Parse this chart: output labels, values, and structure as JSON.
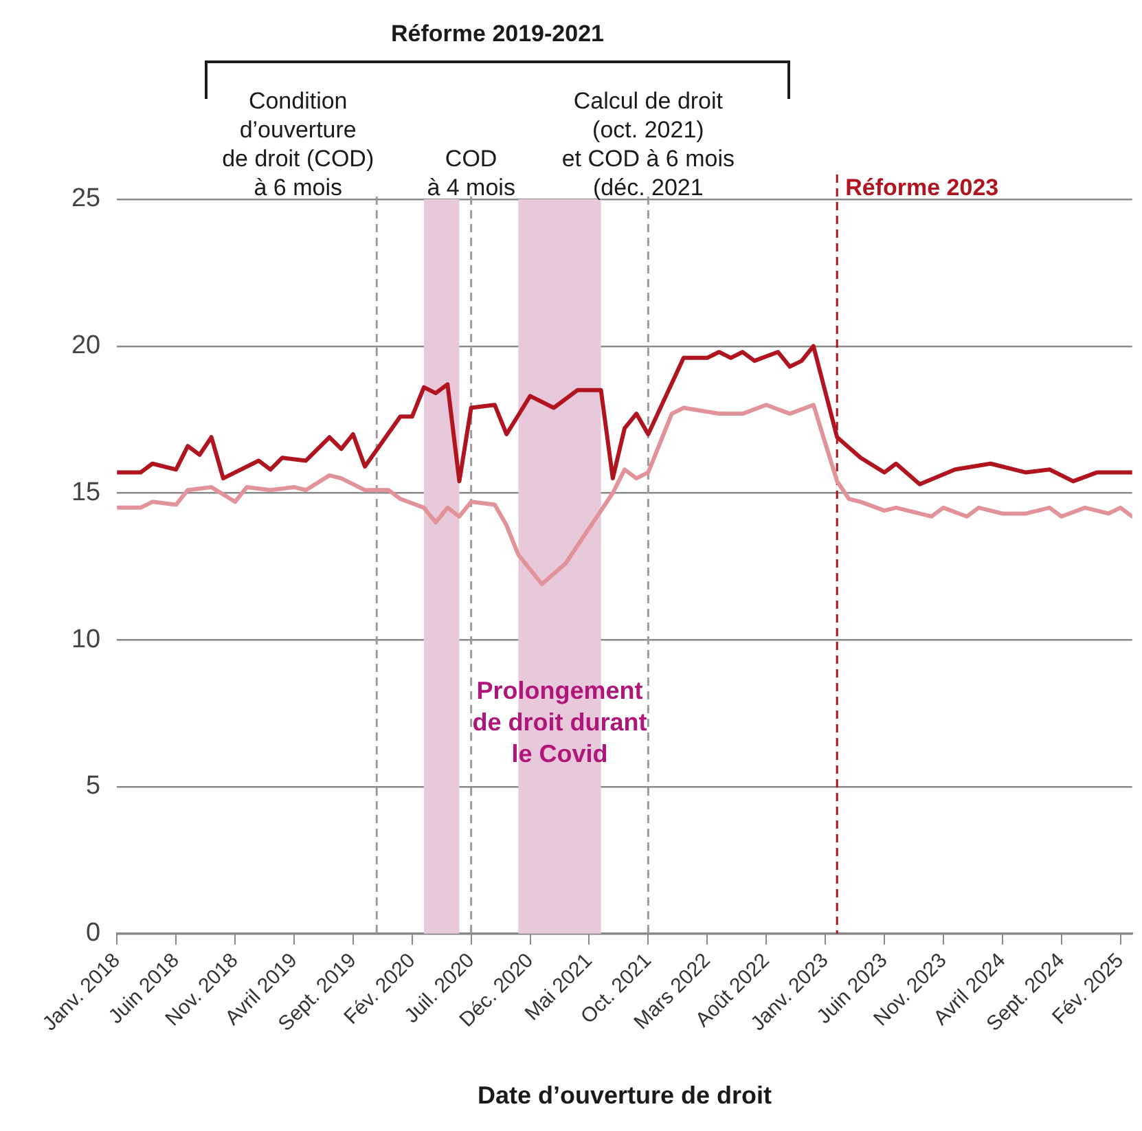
{
  "chart_data": {
    "type": "line",
    "xlabel": "Date d’ouverture de droit",
    "xlim": [
      "2018-01",
      "2025-03"
    ],
    "xticks": [
      {
        "value": "2018-01",
        "label": "Janv. 2018"
      },
      {
        "value": "2018-06",
        "label": "Juin 2018"
      },
      {
        "value": "2018-11",
        "label": "Nov. 2018"
      },
      {
        "value": "2019-04",
        "label": "Avril 2019"
      },
      {
        "value": "2019-09",
        "label": "Sept. 2019"
      },
      {
        "value": "2020-02",
        "label": "Fév. 2020"
      },
      {
        "value": "2020-07",
        "label": "Juil. 2020"
      },
      {
        "value": "2020-12",
        "label": "Déc. 2020"
      },
      {
        "value": "2021-05",
        "label": "Mai 2021"
      },
      {
        "value": "2021-10",
        "label": "Oct. 2021"
      },
      {
        "value": "2022-03",
        "label": "Mars 2022"
      },
      {
        "value": "2022-08",
        "label": "Août 2022"
      },
      {
        "value": "2023-01",
        "label": "Janv. 2023"
      },
      {
        "value": "2023-06",
        "label": "Juin 2023"
      },
      {
        "value": "2023-11",
        "label": "Nov. 2023"
      },
      {
        "value": "2024-04",
        "label": "Avril 2024"
      },
      {
        "value": "2024-09",
        "label": "Sept. 2024"
      },
      {
        "value": "2025-02",
        "label": "Fév. 2025"
      }
    ],
    "ylim": [
      0,
      25
    ],
    "yticks": [
      0,
      5,
      10,
      15,
      20,
      25
    ],
    "grid": "y",
    "legend": false,
    "marker": "none",
    "line_style": "solid",
    "series": [
      {
        "color": "#e2939a",
        "x": [
          "2018-01",
          "2018-03",
          "2018-04",
          "2018-06",
          "2018-07",
          "2018-09",
          "2018-11",
          "2018-12",
          "2019-02",
          "2019-04",
          "2019-05",
          "2019-07",
          "2019-08",
          "2019-10",
          "2019-12",
          "2020-01",
          "2020-03",
          "2020-04",
          "2020-05",
          "2020-06",
          "2020-07",
          "2020-09",
          "2020-10",
          "2020-11",
          "2021-01",
          "2021-03",
          "2021-05",
          "2021-07",
          "2021-08",
          "2021-09",
          "2021-10",
          "2021-12",
          "2022-01",
          "2022-04",
          "2022-06",
          "2022-08",
          "2022-10",
          "2022-12",
          "2023-02",
          "2023-03",
          "2023-04",
          "2023-06",
          "2023-07",
          "2023-10",
          "2023-11",
          "2024-01",
          "2024-02",
          "2024-04",
          "2024-06",
          "2024-08",
          "2024-09",
          "2024-11",
          "2025-01",
          "2025-02",
          "2025-03"
        ],
        "values": [
          14.5,
          14.5,
          14.7,
          14.6,
          15.1,
          15.2,
          14.7,
          15.2,
          15.1,
          15.2,
          15.1,
          15.6,
          15.5,
          15.1,
          15.1,
          14.8,
          14.5,
          14.0,
          14.5,
          14.2,
          14.7,
          14.6,
          13.9,
          12.9,
          11.9,
          12.6,
          13.8,
          15.0,
          15.8,
          15.5,
          15.7,
          17.7,
          17.9,
          17.7,
          17.7,
          18.0,
          17.7,
          18.0,
          15.4,
          14.8,
          14.7,
          14.4,
          14.5,
          14.2,
          14.5,
          14.2,
          14.5,
          14.3,
          14.3,
          14.5,
          14.2,
          14.5,
          14.3,
          14.5,
          14.2
        ]
      },
      {
        "color": "#b0141e",
        "x": [
          "2018-01",
          "2018-03",
          "2018-04",
          "2018-06",
          "2018-07",
          "2018-08",
          "2018-09",
          "2018-10",
          "2019-01",
          "2019-02",
          "2019-03",
          "2019-05",
          "2019-07",
          "2019-08",
          "2019-09",
          "2019-10",
          "2020-01",
          "2020-02",
          "2020-03",
          "2020-04",
          "2020-05",
          "2020-06",
          "2020-07",
          "2020-09",
          "2020-10",
          "2020-12",
          "2021-02",
          "2021-04",
          "2021-06",
          "2021-07",
          "2021-08",
          "2021-09",
          "2021-10",
          "2022-01",
          "2022-03",
          "2022-04",
          "2022-05",
          "2022-06",
          "2022-07",
          "2022-09",
          "2022-10",
          "2022-11",
          "2022-12",
          "2023-02",
          "2023-04",
          "2023-06",
          "2023-07",
          "2023-09",
          "2023-12",
          "2024-03",
          "2024-06",
          "2024-08",
          "2024-10",
          "2024-12",
          "2025-03"
        ],
        "values": [
          15.7,
          15.7,
          16.0,
          15.8,
          16.6,
          16.3,
          16.9,
          15.5,
          16.1,
          15.8,
          16.2,
          16.1,
          16.9,
          16.5,
          17.0,
          15.9,
          17.6,
          17.6,
          18.6,
          18.4,
          18.7,
          15.4,
          17.9,
          18.0,
          17.0,
          18.3,
          17.9,
          18.5,
          18.5,
          15.5,
          17.2,
          17.7,
          17.0,
          19.6,
          19.6,
          19.8,
          19.6,
          19.8,
          19.5,
          19.8,
          19.3,
          19.5,
          20.0,
          16.9,
          16.2,
          15.7,
          16.0,
          15.3,
          15.8,
          16.0,
          15.7,
          15.8,
          15.4,
          15.7,
          15.7
        ]
      }
    ],
    "bands": [
      {
        "axis": "x",
        "from": "2020-03",
        "to": "2020-06",
        "color": "#e8c9dc"
      },
      {
        "axis": "x",
        "from": "2020-11",
        "to": "2021-06",
        "color": "#e8c9dc",
        "label": "Prolongement\nde droit durant\nle Covid"
      }
    ],
    "ref_lines": [
      {
        "axis": "x",
        "value": "2019-11",
        "color": "#9a9a9a",
        "line_style": "dashed",
        "label": "Condition\nd’ouverture\nde droit (COD)\nà 6 mois"
      },
      {
        "axis": "x",
        "value": "2020-07",
        "color": "#9a9a9a",
        "line_style": "dashed",
        "label": "COD\nà 4 mois"
      },
      {
        "axis": "x",
        "value": "2021-10",
        "color": "#9a9a9a",
        "line_style": "dashed",
        "label": "Calcul de droit\n(oct. 2021)\net COD à 6 mois\n(déc. 2021"
      },
      {
        "axis": "x",
        "value": "2023-02",
        "label": "Réforme 2023",
        "color": "#b0141e",
        "line_style": "dashed"
      }
    ],
    "annotations": [
      "Réforme 2019-2021"
    ]
  }
}
